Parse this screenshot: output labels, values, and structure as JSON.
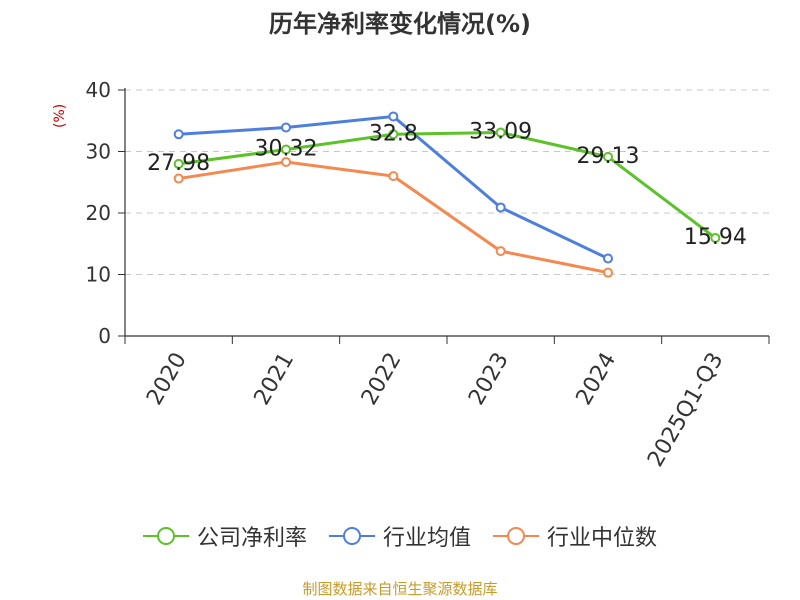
{
  "chart_data": {
    "type": "line",
    "title": "历年净利率变化情况(%)",
    "ylabel": "(%)",
    "xlabel": "",
    "ylim": [
      0,
      40
    ],
    "yticks": [
      0,
      10,
      20,
      30,
      40
    ],
    "grid": true,
    "legend_position": "bottom",
    "categories": [
      "2020",
      "2021",
      "2022",
      "2023",
      "2024",
      "2025Q1-Q3"
    ],
    "series": [
      {
        "name": "公司净利率",
        "color": "#5bc229",
        "values": [
          27.98,
          30.32,
          32.8,
          33.09,
          29.13,
          15.94
        ],
        "labels": [
          "27.98",
          "30.32",
          "32.8",
          "33.09",
          "29.13",
          "15.94"
        ]
      },
      {
        "name": "行业均值",
        "color": "#4e7fdc",
        "values": [
          32.8,
          33.9,
          35.7,
          20.9,
          12.6,
          null
        ]
      },
      {
        "name": "行业中位数",
        "color": "#f5884f",
        "values": [
          25.6,
          28.3,
          26.0,
          13.8,
          10.3,
          null
        ]
      }
    ]
  },
  "source": "制图数据来自恒生聚源数据库"
}
